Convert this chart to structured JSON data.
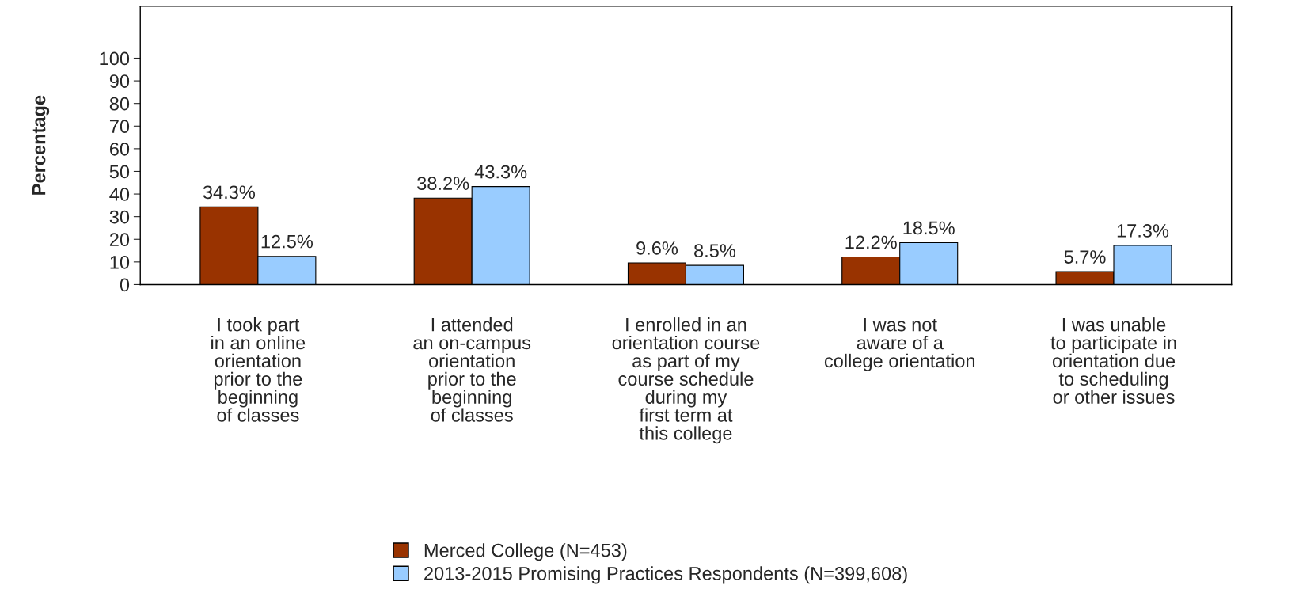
{
  "chart_data": {
    "type": "bar",
    "ylabel": "Percentage",
    "categories": [
      "I took part\nin an online\norientation\nprior to the\nbeginning\nof classes",
      "I attended\nan on-campus\norientation\nprior to the\nbeginning\nof classes",
      "I enrolled in an\norientation course\nas part of my\ncourse schedule\nduring my\nfirst term at\nthis college",
      "I was not\naware of a\ncollege orientation",
      "I was unable\nto participate in\norientation due\nto scheduling\nor other issues"
    ],
    "series": [
      {
        "name": "Merced College (N=453)",
        "color": "#993300",
        "values": [
          34.3,
          38.2,
          9.6,
          12.2,
          5.7
        ],
        "value_labels": [
          "34.3%",
          "38.2%",
          "9.6%",
          "12.2%",
          "5.7%"
        ]
      },
      {
        "name": "2013-2015 Promising Practices Respondents (N=399,608)",
        "color": "#99ccff",
        "values": [
          12.5,
          43.3,
          8.5,
          18.5,
          17.3
        ],
        "value_labels": [
          "12.5%",
          "43.3%",
          "8.5%",
          "18.5%",
          "17.3%"
        ]
      }
    ],
    "ylim": [
      0,
      123
    ],
    "yticks": [
      0,
      10,
      20,
      30,
      40,
      50,
      60,
      70,
      80,
      90,
      100
    ],
    "grid": false,
    "legend": "bottom"
  }
}
